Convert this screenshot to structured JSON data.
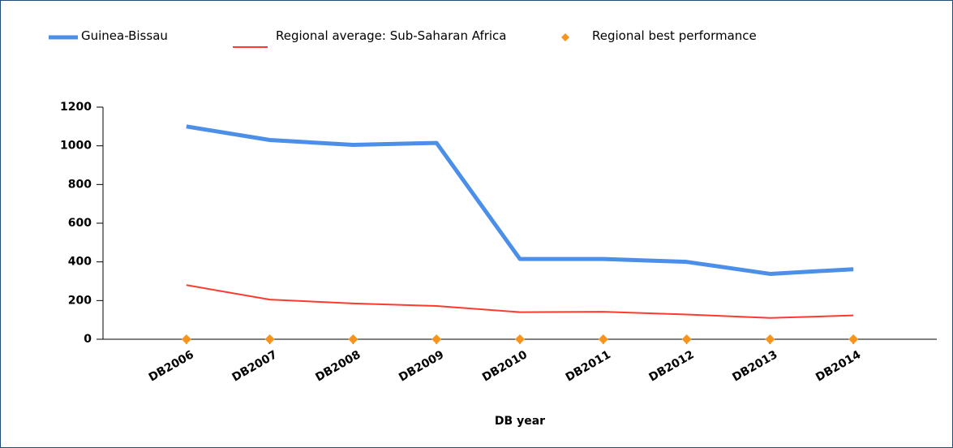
{
  "chart_data": {
    "type": "line",
    "x_label": "DB year",
    "categories": [
      "DB2006",
      "DB2007",
      "DB2008",
      "DB2009",
      "DB2010",
      "DB2011",
      "DB2012",
      "DB2013",
      "DB2014"
    ],
    "series": [
      {
        "name": "Guinea-Bissau",
        "color": "#4c8fe8",
        "values": [
          1100,
          1030,
          1005,
          1015,
          415,
          415,
          400,
          338,
          362
        ]
      },
      {
        "name": "Regional average: Sub-Saharan Africa",
        "color": "#ff3b30",
        "values": [
          280,
          205,
          185,
          172,
          140,
          142,
          128,
          110,
          123
        ]
      },
      {
        "name": "Regional best performance",
        "color": "#f7941d",
        "marker": "diamond",
        "values": [
          0,
          0,
          0,
          0,
          0,
          0,
          0,
          0,
          0
        ]
      }
    ],
    "ylim": [
      0,
      1200
    ],
    "yticks": [
      0,
      200,
      400,
      600,
      800,
      1000,
      1200
    ],
    "grid": false
  }
}
